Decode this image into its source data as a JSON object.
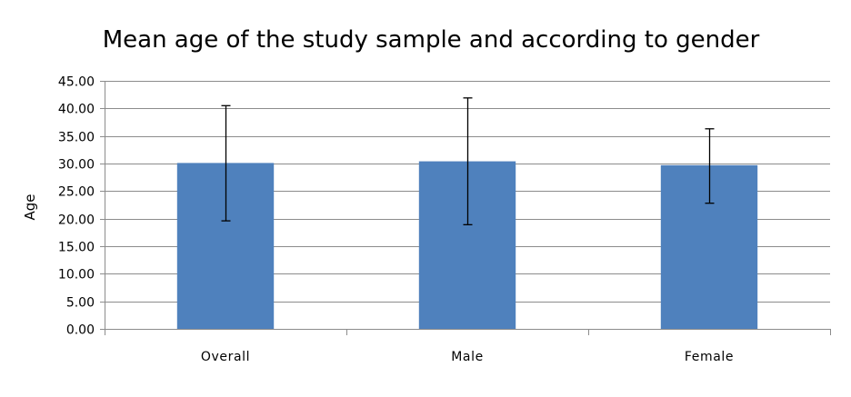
{
  "chart_data": {
    "type": "bar",
    "title": "Mean age of the study sample and according to gender",
    "xlabel": "",
    "ylabel": "Age",
    "categories": [
      "Overall",
      "Male",
      "Female"
    ],
    "values": [
      30.1,
      30.4,
      29.7
    ],
    "error_low": [
      19.6,
      18.9,
      22.8
    ],
    "error_high": [
      40.5,
      41.9,
      36.3
    ],
    "ylim": [
      0,
      45
    ],
    "yticks": [
      "0.00",
      "5.00",
      "10.00",
      "15.00",
      "20.00",
      "25.00",
      "30.00",
      "35.00",
      "40.00",
      "45.00"
    ],
    "ytick_values": [
      0,
      5,
      10,
      15,
      20,
      25,
      30,
      35,
      40,
      45
    ],
    "grid": true,
    "legend": "none",
    "bar_color": "#4f81bd"
  }
}
